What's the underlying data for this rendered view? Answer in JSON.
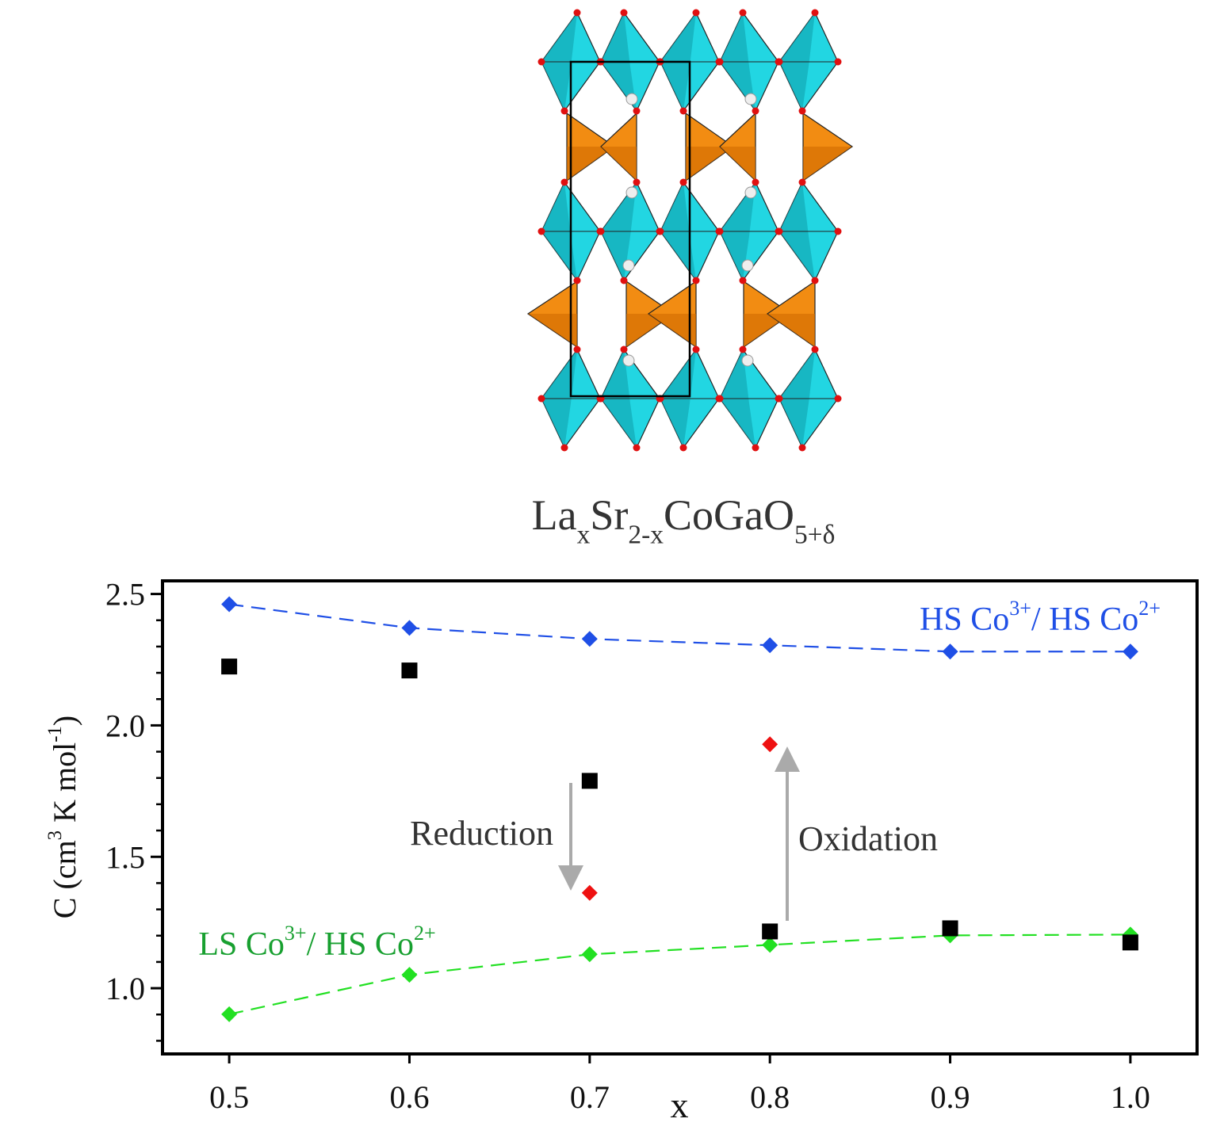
{
  "chart_data": {
    "type": "scatter",
    "title": [
      {
        "text": "La"
      },
      {
        "text": "x",
        "script": "sub"
      },
      {
        "text": "Sr"
      },
      {
        "text": "2-x",
        "script": "sub"
      },
      {
        "text": "CoGaO"
      },
      {
        "text": "5+δ",
        "script": "sub"
      }
    ],
    "xlabel": [
      {
        "text": "x"
      }
    ],
    "ylabel": [
      {
        "text": "C (cm"
      },
      {
        "text": "3",
        "script": "sup"
      },
      {
        "text": " K mol"
      },
      {
        "text": "-1",
        "script": "sup"
      },
      {
        "text": ")"
      }
    ],
    "x": [
      0.5,
      0.6,
      0.7,
      0.8,
      0.9,
      1.0
    ],
    "xlim": [
      0.463,
      1.037
    ],
    "ylim": [
      0.75,
      2.55
    ],
    "xticks": [
      0.5,
      0.6,
      0.7,
      0.8,
      0.9,
      {
        "value": 1.0,
        "label": "1.0"
      }
    ],
    "yticks": [
      {
        "value": 1.0,
        "label": "1.0"
      },
      1.5,
      {
        "value": 2.0,
        "label": "2.0"
      },
      2.5
    ],
    "yminorticks": [
      0.8,
      0.9,
      1.1,
      1.2,
      1.3,
      1.4,
      1.6,
      1.7,
      1.8,
      1.9,
      2.1,
      2.2,
      2.3,
      2.4
    ],
    "series": [
      {
        "name": [
          {
            "text": "HS Co"
          },
          {
            "text": "3+",
            "script": "sup"
          },
          {
            "text": "/ HS Co"
          },
          {
            "text": "2+",
            "script": "sup"
          }
        ],
        "color": "#1f4fe6",
        "label_color": "#1f4fe6",
        "marker": "diamond",
        "linestyle": "dashed",
        "values": [
          2.461,
          2.371,
          2.329,
          2.305,
          2.281,
          2.281
        ]
      },
      {
        "name": [
          {
            "text": "LS Co"
          },
          {
            "text": "3+",
            "script": "sup"
          },
          {
            "text": "/ HS Co"
          },
          {
            "text": "2+",
            "script": "sup"
          }
        ],
        "color": "#22e022",
        "label_color": "#18a030",
        "marker": "diamond",
        "linestyle": "dashed",
        "values": [
          0.901,
          1.051,
          1.129,
          1.165,
          1.201,
          1.204
        ]
      },
      {
        "color": "#000000",
        "marker": "square",
        "linestyle": "none",
        "values": [
          2.224,
          2.209,
          1.789,
          1.216,
          1.228,
          1.174
        ]
      },
      {
        "color": "#ee1111",
        "marker": "diamond",
        "linestyle": "none",
        "values": [
          null,
          null,
          1.363,
          1.928,
          null,
          null
        ]
      }
    ],
    "annotations": [
      {
        "text": "Reduction"
      },
      {
        "text": "Oxidation"
      }
    ]
  }
}
